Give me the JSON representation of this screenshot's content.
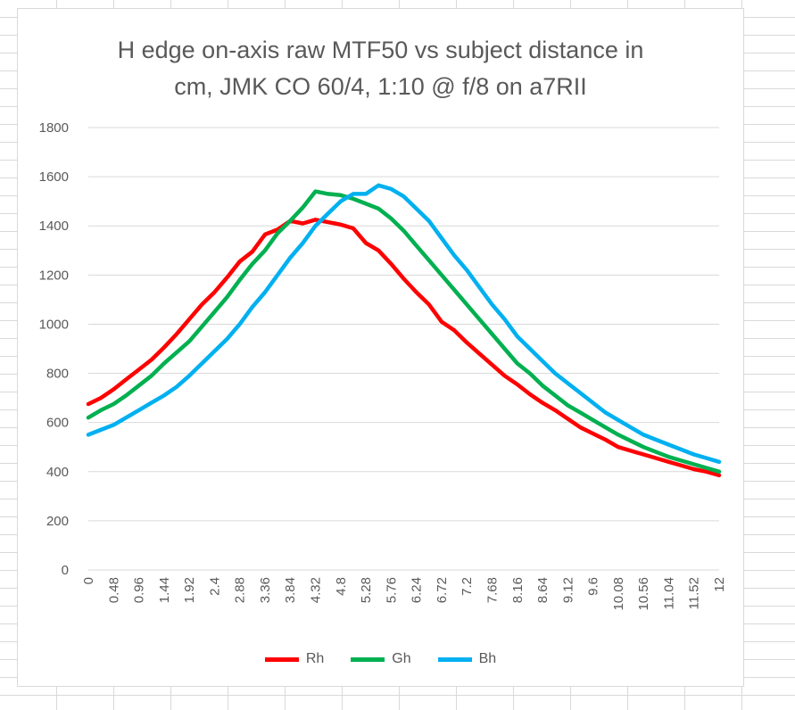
{
  "chart_data": {
    "type": "line",
    "title_lines": [
      "H edge on-axis raw MTF50 vs subject distance in",
      "cm, JMK CO 60/4, 1:10 @ f/8 on a7RII"
    ],
    "ylim": [
      0,
      1800
    ],
    "y_ticks": [
      "0",
      "200",
      "400",
      "600",
      "800",
      "1000",
      "1200",
      "1400",
      "1600",
      "1800"
    ],
    "x_tick_labels": [
      "0",
      "0.48",
      "0.96",
      "1.44",
      "1.92",
      "2.4",
      "2.88",
      "3.36",
      "3.84",
      "4.32",
      "4.8",
      "5.28",
      "5.76",
      "6.24",
      "6.72",
      "7.2",
      "7.68",
      "8.16",
      "8.64",
      "9.12",
      "9.6",
      "10.08",
      "10.56",
      "11.04",
      "11.52",
      "12"
    ],
    "x_range": [
      0,
      12
    ],
    "grid": "horizontal",
    "legend_position": "bottom",
    "series": [
      {
        "name": "Rh",
        "color": "#ff0000",
        "x": [
          0,
          0.24,
          0.48,
          0.72,
          0.96,
          1.2,
          1.44,
          1.68,
          1.92,
          2.16,
          2.4,
          2.64,
          2.88,
          3.12,
          3.36,
          3.6,
          3.84,
          4.08,
          4.32,
          4.56,
          4.8,
          5.04,
          5.28,
          5.52,
          5.76,
          6.0,
          6.24,
          6.48,
          6.72,
          6.96,
          7.2,
          7.44,
          7.68,
          7.92,
          8.16,
          8.4,
          8.64,
          8.88,
          9.12,
          9.36,
          9.6,
          9.84,
          10.08,
          10.32,
          10.56,
          10.8,
          11.04,
          11.28,
          11.52,
          11.76,
          12
        ],
        "values": [
          675,
          700,
          735,
          775,
          815,
          855,
          905,
          960,
          1020,
          1080,
          1130,
          1190,
          1255,
          1295,
          1365,
          1385,
          1420,
          1410,
          1425,
          1415,
          1405,
          1390,
          1330,
          1300,
          1245,
          1185,
          1130,
          1080,
          1010,
          975,
          925,
          880,
          835,
          790,
          755,
          715,
          680,
          650,
          615,
          580,
          555,
          530,
          500,
          485,
          470,
          455,
          440,
          425,
          410,
          400,
          385
        ]
      },
      {
        "name": "Gh",
        "color": "#00b050",
        "x": [
          0,
          0.24,
          0.48,
          0.72,
          0.96,
          1.2,
          1.44,
          1.68,
          1.92,
          2.16,
          2.4,
          2.64,
          2.88,
          3.12,
          3.36,
          3.6,
          3.84,
          4.08,
          4.32,
          4.56,
          4.8,
          5.04,
          5.28,
          5.52,
          5.76,
          6.0,
          6.24,
          6.48,
          6.72,
          6.96,
          7.2,
          7.44,
          7.68,
          7.92,
          8.16,
          8.4,
          8.64,
          8.88,
          9.12,
          9.36,
          9.6,
          9.84,
          10.08,
          10.32,
          10.56,
          10.8,
          11.04,
          11.28,
          11.52,
          11.76,
          12
        ],
        "values": [
          620,
          650,
          675,
          710,
          750,
          790,
          840,
          885,
          930,
          990,
          1050,
          1110,
          1180,
          1245,
          1300,
          1370,
          1420,
          1475,
          1540,
          1530,
          1525,
          1510,
          1490,
          1470,
          1430,
          1380,
          1320,
          1260,
          1200,
          1140,
          1080,
          1020,
          960,
          900,
          840,
          800,
          750,
          710,
          670,
          640,
          610,
          580,
          550,
          525,
          500,
          480,
          460,
          445,
          430,
          415,
          400
        ]
      },
      {
        "name": "Bh",
        "color": "#00b0f0",
        "x": [
          0,
          0.24,
          0.48,
          0.72,
          0.96,
          1.2,
          1.44,
          1.68,
          1.92,
          2.16,
          2.4,
          2.64,
          2.88,
          3.12,
          3.36,
          3.6,
          3.84,
          4.08,
          4.32,
          4.56,
          4.8,
          5.04,
          5.28,
          5.52,
          5.76,
          6.0,
          6.24,
          6.48,
          6.72,
          6.96,
          7.2,
          7.44,
          7.68,
          7.92,
          8.16,
          8.4,
          8.64,
          8.88,
          9.12,
          9.36,
          9.6,
          9.84,
          10.08,
          10.32,
          10.56,
          10.8,
          11.04,
          11.28,
          11.52,
          11.76,
          12
        ],
        "values": [
          550,
          570,
          590,
          620,
          650,
          680,
          710,
          745,
          790,
          840,
          890,
          940,
          1000,
          1070,
          1130,
          1200,
          1270,
          1330,
          1400,
          1450,
          1500,
          1530,
          1530,
          1565,
          1550,
          1520,
          1470,
          1420,
          1350,
          1280,
          1220,
          1150,
          1080,
          1020,
          950,
          900,
          850,
          800,
          760,
          720,
          680,
          640,
          610,
          580,
          550,
          530,
          510,
          490,
          470,
          455,
          440
        ]
      }
    ]
  }
}
